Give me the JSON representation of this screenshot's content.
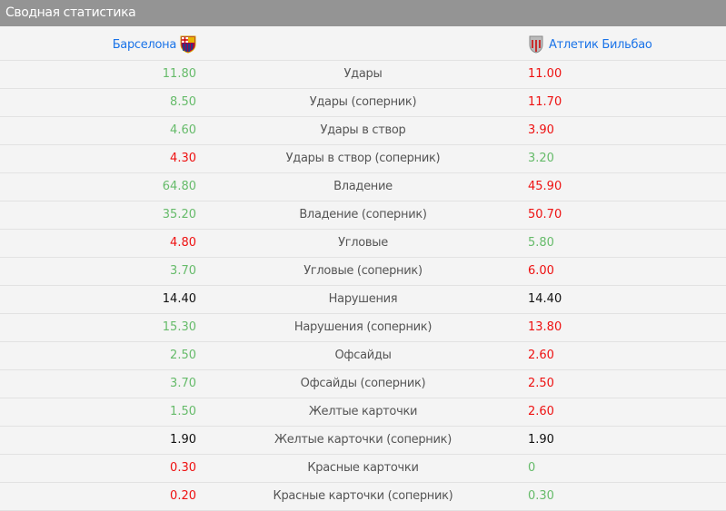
{
  "title": "Сводная статистика",
  "home_team": {
    "name": "Барселона",
    "logo": "barcelona-crest"
  },
  "away_team": {
    "name": "Атлетик Бильбао",
    "logo": "athletic-bilbao-crest"
  },
  "colors": {
    "better": "#66bb6a",
    "worse": "#ee1111",
    "equal": "#111111"
  },
  "rows": [
    {
      "label": "Удары",
      "home": "11.80",
      "away": "11.00",
      "hc": "g",
      "ac": "rd"
    },
    {
      "label": "Удары (соперник)",
      "home": "8.50",
      "away": "11.70",
      "hc": "g",
      "ac": "rd"
    },
    {
      "label": "Удары в створ",
      "home": "4.60",
      "away": "3.90",
      "hc": "g",
      "ac": "rd"
    },
    {
      "label": "Удары в створ (соперник)",
      "home": "4.30",
      "away": "3.20",
      "hc": "rd",
      "ac": "g"
    },
    {
      "label": "Владение",
      "home": "64.80",
      "away": "45.90",
      "hc": "g",
      "ac": "rd"
    },
    {
      "label": "Владение (соперник)",
      "home": "35.20",
      "away": "50.70",
      "hc": "g",
      "ac": "rd"
    },
    {
      "label": "Угловые",
      "home": "4.80",
      "away": "5.80",
      "hc": "rd",
      "ac": "g"
    },
    {
      "label": "Угловые (соперник)",
      "home": "3.70",
      "away": "6.00",
      "hc": "g",
      "ac": "rd"
    },
    {
      "label": "Нарушения",
      "home": "14.40",
      "away": "14.40",
      "hc": "b",
      "ac": "b"
    },
    {
      "label": "Нарушения (соперник)",
      "home": "15.30",
      "away": "13.80",
      "hc": "g",
      "ac": "rd"
    },
    {
      "label": "Офсайды",
      "home": "2.50",
      "away": "2.60",
      "hc": "g",
      "ac": "rd"
    },
    {
      "label": "Офсайды (соперник)",
      "home": "3.70",
      "away": "2.50",
      "hc": "g",
      "ac": "rd"
    },
    {
      "label": "Желтые карточки",
      "home": "1.50",
      "away": "2.60",
      "hc": "g",
      "ac": "rd"
    },
    {
      "label": "Желтые карточки (соперник)",
      "home": "1.90",
      "away": "1.90",
      "hc": "b",
      "ac": "b"
    },
    {
      "label": "Красные карточки",
      "home": "0.30",
      "away": "0",
      "hc": "rd",
      "ac": "g"
    },
    {
      "label": "Красные карточки (соперник)",
      "home": "0.20",
      "away": "0.30",
      "hc": "rd",
      "ac": "g"
    }
  ]
}
